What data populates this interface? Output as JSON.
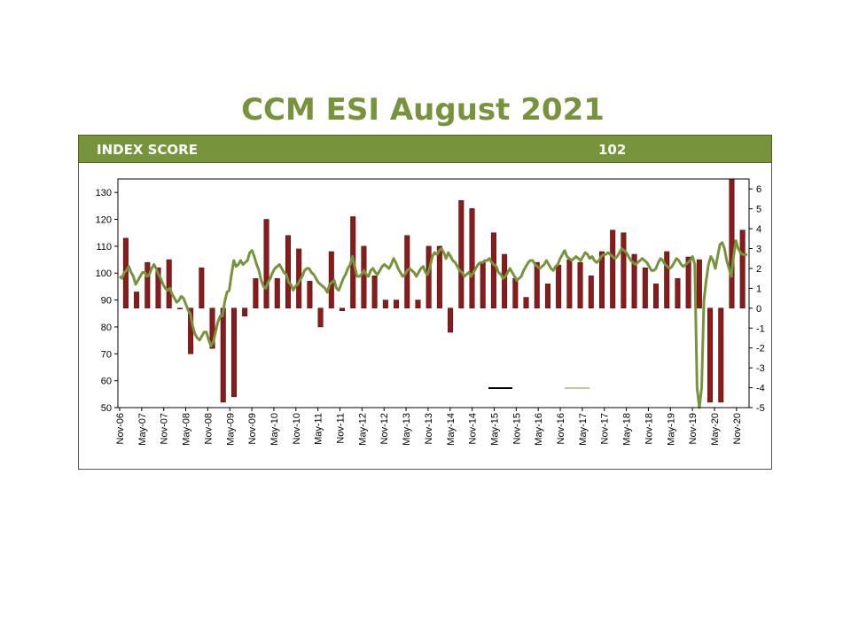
{
  "title": "CCM ESI August 2021",
  "score": {
    "label": "INDEX SCORE",
    "value": "102"
  },
  "colors": {
    "accent": "#77933c",
    "bar": "#8b1a1a",
    "line": "#77933c"
  },
  "chart_data": {
    "type": "bar",
    "title": "CCM ESI August 2021",
    "xlabel": "",
    "ylabel": "",
    "y_left": {
      "min": 50,
      "max": 135,
      "ticks": [
        50,
        60,
        70,
        80,
        90,
        100,
        110,
        120,
        130
      ],
      "baseline": 87
    },
    "y_right": {
      "min": -5,
      "max": 6.5,
      "ticks": [
        -5,
        -4,
        -3,
        -2,
        -1,
        0,
        1,
        2,
        3,
        4,
        5,
        6
      ]
    },
    "x_tick_labels": [
      "Nov-06",
      "May-07",
      "Nov-07",
      "May-08",
      "Nov-08",
      "May-09",
      "Nov-09",
      "May-10",
      "Nov-10",
      "May-11",
      "Nov-11",
      "May-12",
      "Nov-12",
      "May-13",
      "Nov-13",
      "May-14",
      "Nov-14",
      "May-15",
      "Nov-15",
      "May-16",
      "Nov-16",
      "May-17",
      "Nov-17",
      "May-18",
      "Nov-18",
      "May-19",
      "Nov-19",
      "May-20",
      "Nov-20"
    ],
    "legend_placement": "bottom-right",
    "series": [
      {
        "type": "bar",
        "axis": "left",
        "values": [
          113,
          93,
          104,
          102,
          105,
          87,
          70,
          102,
          72,
          52,
          54,
          84,
          98,
          120,
          98,
          114,
          109,
          97,
          80,
          108,
          86,
          121,
          110,
          99,
          90,
          90,
          114,
          90,
          110,
          110,
          78,
          127,
          124,
          104,
          115,
          107,
          98,
          91,
          104,
          96,
          103,
          105,
          104,
          99,
          108,
          116,
          115,
          107,
          102,
          96,
          108,
          98,
          106,
          105,
          52,
          52,
          135,
          116
        ]
      },
      {
        "type": "line",
        "axis": "right",
        "values": [
          1.6,
          1.5,
          1.8,
          1.9,
          2.1,
          1.8,
          1.6,
          1.2,
          1.4,
          1.6,
          1.8,
          1.8,
          1.6,
          1.7,
          2.0,
          2.2,
          2.0,
          1.7,
          1.5,
          1.2,
          1.0,
          0.9,
          1.0,
          0.7,
          0.5,
          0.3,
          0.4,
          0.6,
          0.5,
          0.2,
          -0.1,
          -0.3,
          -0.9,
          -1.3,
          -1.5,
          -1.6,
          -1.4,
          -1.2,
          -1.2,
          -1.6,
          -1.9,
          -1.7,
          -1.2,
          -0.7,
          -0.4,
          -0.4,
          0.3,
          0.8,
          0.9,
          1.7,
          2.4,
          2.1,
          2.2,
          2.4,
          2.2,
          2.3,
          2.4,
          2.8,
          2.9,
          2.6,
          2.2,
          1.9,
          1.4,
          1.1,
          1.0,
          1.3,
          1.5,
          1.8,
          2.0,
          2.1,
          2.2,
          2.0,
          1.8,
          1.7,
          1.3,
          1.2,
          0.9,
          1.1,
          1.2,
          1.4,
          1.6,
          1.9,
          2.0,
          2.0,
          1.8,
          1.7,
          1.5,
          1.3,
          1.2,
          1.1,
          1.0,
          0.8,
          1.2,
          1.3,
          1.4,
          1.0,
          0.9,
          1.2,
          1.5,
          1.7,
          2.0,
          2.2,
          2.6,
          2.1,
          1.6,
          1.6,
          1.7,
          1.9,
          1.7,
          1.6,
          1.9,
          2.0,
          1.8,
          1.7,
          1.9,
          2.1,
          2.2,
          2.1,
          2.0,
          2.2,
          2.5,
          2.3,
          2.0,
          1.8,
          1.6,
          1.7,
          1.9,
          2.0,
          1.9,
          1.8,
          1.6,
          1.8,
          2.0,
          2.1,
          1.8,
          1.7,
          2.1,
          2.6,
          2.8,
          2.7,
          2.9,
          3.0,
          2.8,
          2.5,
          2.8,
          2.6,
          2.4,
          2.3,
          2.1,
          1.9,
          1.8,
          1.6,
          1.7,
          1.8,
          1.6,
          1.8,
          2.0,
          2.2,
          2.3,
          2.3,
          2.4,
          2.4,
          2.5,
          2.3,
          2.2,
          2.1,
          1.8,
          1.7,
          1.5,
          1.6,
          1.8,
          2.0,
          1.8,
          1.6,
          1.4,
          1.5,
          1.6,
          1.9,
          2.1,
          2.3,
          2.4,
          2.4,
          2.2,
          2.1,
          2.0,
          2.1,
          2.2,
          2.4,
          2.2,
          2.0,
          1.9,
          2.1,
          2.2,
          2.5,
          2.7,
          2.9,
          2.6,
          2.5,
          2.4,
          2.5,
          2.6,
          2.5,
          2.4,
          2.6,
          2.8,
          2.7,
          2.5,
          2.6,
          2.4,
          2.3,
          2.4,
          2.6,
          2.7,
          2.7,
          2.8,
          2.7,
          2.6,
          2.5,
          2.6,
          2.8,
          3.0,
          2.9,
          2.8,
          2.6,
          2.4,
          2.3,
          2.2,
          2.3,
          2.4,
          2.5,
          2.4,
          2.3,
          2.1,
          1.9,
          1.9,
          2.0,
          2.3,
          2.5,
          2.4,
          2.2,
          2.1,
          2.0,
          2.1,
          2.3,
          2.5,
          2.4,
          2.2,
          2.1,
          2.2,
          2.3,
          2.4,
          2.6,
          2.2,
          -4.0,
          -5.0,
          -4.0,
          0.4,
          1.4,
          2.2,
          2.6,
          2.4,
          2.0,
          2.6,
          3.2,
          3.3,
          3.0,
          2.4,
          2.0,
          1.6,
          2.6,
          3.4,
          3.0,
          2.8,
          2.7,
          2.7,
          2.7
        ]
      }
    ]
  }
}
